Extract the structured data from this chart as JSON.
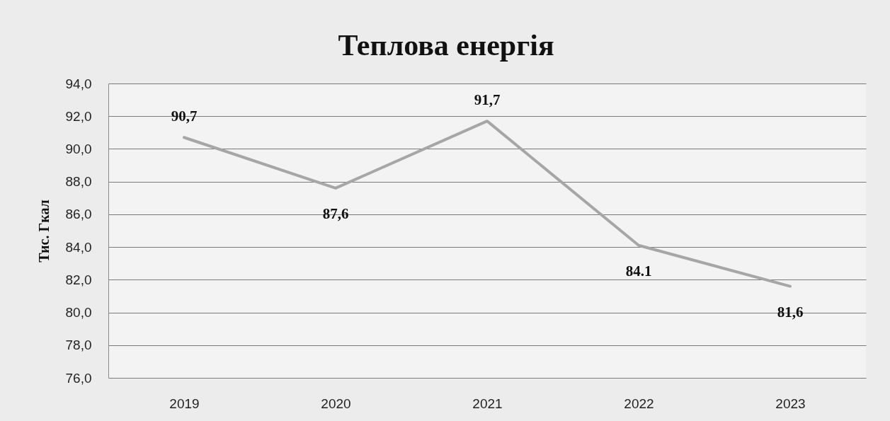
{
  "chart_data": {
    "type": "line",
    "title": "Теплова енергія",
    "ylabel": "Тис. Гкал",
    "categories": [
      "2019",
      "2020",
      "2021",
      "2022",
      "2023"
    ],
    "series": [
      {
        "color": "#a6a6a6",
        "values": [
          90.7,
          87.6,
          91.7,
          84.1,
          81.6
        ],
        "value_labels": [
          "90,7",
          "87,6",
          "91,7",
          "84.1",
          "81,6"
        ]
      }
    ],
    "ylim": [
      76,
      94
    ],
    "yticks": [
      {
        "value": 76,
        "label": "76,0"
      },
      {
        "value": 78,
        "label": "78,0"
      },
      {
        "value": 80,
        "label": "80,0"
      },
      {
        "value": 82,
        "label": "82,0"
      },
      {
        "value": 84,
        "label": "84,0"
      },
      {
        "value": 86,
        "label": "86,0"
      },
      {
        "value": 88,
        "label": "88,0"
      },
      {
        "value": 90,
        "label": "90,0"
      },
      {
        "value": 92,
        "label": "92,0"
      },
      {
        "value": 94,
        "label": "94,0"
      }
    ],
    "grid": "y"
  }
}
